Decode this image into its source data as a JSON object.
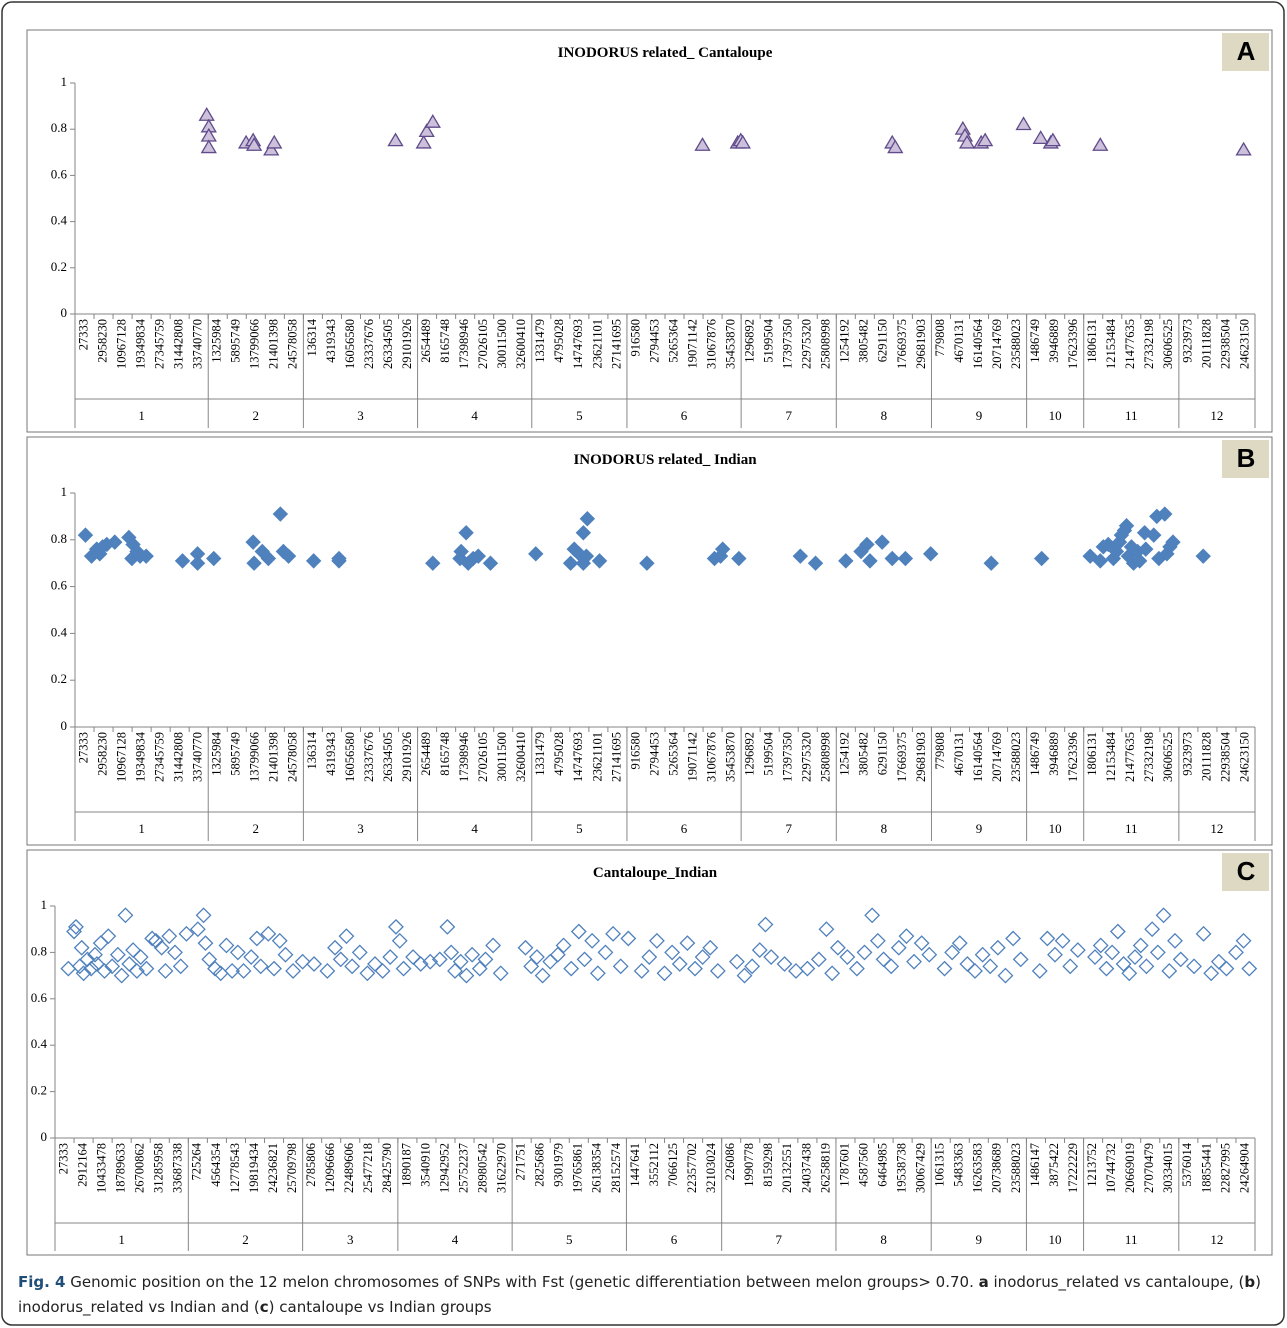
{
  "chart_data": [
    {
      "type": "scatter",
      "title": "INODORUS related_ Cantaloupe",
      "panel": "A",
      "marker": "triangle",
      "color": "#ccc0da",
      "stroke": "#5f4b8b",
      "ylim": [
        0,
        1
      ],
      "yticks": [
        0,
        0.2,
        0.4,
        0.6,
        0.8,
        1
      ],
      "grid": false,
      "groups": [
        {
          "label": "1",
          "positions": [
            "27333",
            "2958230",
            "10967128",
            "19349834",
            "27345759",
            "31442808",
            "33740770"
          ]
        },
        {
          "label": "2",
          "positions": [
            "1325984",
            "5895749",
            "13799066",
            "21401398",
            "24578058"
          ]
        },
        {
          "label": "3",
          "positions": [
            "136314",
            "4319343",
            "16056580",
            "23337676",
            "26334505",
            "29101926"
          ]
        },
        {
          "label": "4",
          "positions": [
            "2654489",
            "8165748",
            "17398946",
            "27026105",
            "30011500",
            "32600410"
          ]
        },
        {
          "label": "5",
          "positions": [
            "1331479",
            "4795028",
            "14747693",
            "23621101",
            "27141695"
          ]
        },
        {
          "label": "6",
          "positions": [
            "916580",
            "2794453",
            "5265364",
            "19071142",
            "31067876",
            "35453870"
          ]
        },
        {
          "label": "7",
          "positions": [
            "1296892",
            "5199504",
            "17397350",
            "22975320",
            "25808998"
          ]
        },
        {
          "label": "8",
          "positions": [
            "1254192",
            "3805482",
            "6291150",
            "17669375",
            "29681903"
          ]
        },
        {
          "label": "9",
          "positions": [
            "779808",
            "4670131",
            "16140564",
            "20714769",
            "23588023"
          ]
        },
        {
          "label": "10",
          "positions": [
            "1486749",
            "3946889",
            "17623396"
          ]
        },
        {
          "label": "11",
          "positions": [
            "1806131",
            "12153484",
            "21477635",
            "27332198",
            "30606525"
          ]
        },
        {
          "label": "12",
          "positions": [
            "9323973",
            "20111828",
            "22938504",
            "24623150"
          ]
        }
      ],
      "points": {
        "x": [
          6.42,
          6.53,
          6.53,
          6.53,
          8.49,
          8.86,
          8.91,
          9.81,
          9.97,
          16.34,
          17.82,
          17.98,
          18.3,
          32.47,
          34.32,
          34.48,
          34.59,
          42.44,
          42.6,
          46.15,
          46.26,
          46.37,
          47.11,
          47.32,
          49.34,
          50.24,
          50.77,
          50.88,
          53.37,
          60.9
        ],
        "y": [
          0.86,
          0.81,
          0.77,
          0.72,
          0.74,
          0.75,
          0.73,
          0.71,
          0.74,
          0.75,
          0.74,
          0.79,
          0.83,
          0.73,
          0.74,
          0.75,
          0.74,
          0.74,
          0.72,
          0.8,
          0.77,
          0.74,
          0.74,
          0.75,
          0.82,
          0.76,
          0.74,
          0.75,
          0.73,
          0.71
        ]
      }
    },
    {
      "type": "scatter",
      "title": "INODORUS related_ Indian",
      "panel": "B",
      "marker": "diamond",
      "color": "#4f81bd",
      "stroke": "#4f81bd",
      "ylim": [
        0,
        1
      ],
      "yticks": [
        0,
        0.2,
        0.4,
        0.6,
        0.8,
        1
      ],
      "grid": false,
      "groups": [
        {
          "label": "1",
          "positions": [
            "27333",
            "2958230",
            "10967128",
            "19349834",
            "27345759",
            "31442808",
            "33740770"
          ]
        },
        {
          "label": "2",
          "positions": [
            "1325984",
            "5895749",
            "13799066",
            "21401398",
            "24578058"
          ]
        },
        {
          "label": "3",
          "positions": [
            "136314",
            "4319343",
            "16056580",
            "23337676",
            "26334505",
            "29101926"
          ]
        },
        {
          "label": "4",
          "positions": [
            "2654489",
            "8165748",
            "17398946",
            "27026105",
            "30011500",
            "32600410"
          ]
        },
        {
          "label": "5",
          "positions": [
            "1331479",
            "4795028",
            "14747693",
            "23621101",
            "27141695"
          ]
        },
        {
          "label": "6",
          "positions": [
            "916580",
            "2794453",
            "5265364",
            "19071142",
            "31067876",
            "35453870"
          ]
        },
        {
          "label": "7",
          "positions": [
            "1296892",
            "5199504",
            "17397350",
            "22975320",
            "25808998"
          ]
        },
        {
          "label": "8",
          "positions": [
            "1254192",
            "3805482",
            "6291150",
            "17669375",
            "29681903"
          ]
        },
        {
          "label": "9",
          "positions": [
            "779808",
            "4670131",
            "16140564",
            "20714769",
            "23588023"
          ]
        },
        {
          "label": "10",
          "positions": [
            "1486749",
            "3946889",
            "17623396"
          ]
        },
        {
          "label": "11",
          "positions": [
            "1806131",
            "12153484",
            "21477635",
            "27332198",
            "30606525"
          ]
        },
        {
          "label": "12",
          "positions": [
            "9323973",
            "20111828",
            "22938504",
            "24623150"
          ]
        }
      ],
      "points": {
        "x": [
          0.05,
          0.37,
          0.64,
          0.8,
          0.95,
          1.17,
          1.59,
          2.33,
          2.55,
          2.49,
          2.76,
          2.92,
          3.24,
          5.15,
          5.94,
          5.94,
          6.79,
          8.86,
          8.91,
          9.34,
          9.66,
          10.29,
          10.45,
          10.72,
          12.04,
          13.37,
          13.37,
          18.3,
          19.73,
          19.79,
          20.05,
          20.16,
          20.42,
          20.69,
          21.33,
          23.71,
          25.54,
          25.73,
          25.99,
          26.21,
          26.21,
          26.42,
          26.37,
          27.06,
          29.55,
          33.1,
          33.42,
          33.53,
          34.38,
          37.61,
          38.41,
          40,
          40.8,
          41.11,
          41.27,
          41.91,
          42.44,
          43.13,
          44.46,
          47.64,
          50.29,
          52.84,
          53.37,
          53.53,
          53.79,
          54.06,
          54.22,
          54.38,
          54.48,
          54.64,
          54.75,
          54.85,
          55.01,
          55.12,
          55.33,
          55.44,
          55.7,
          55.76,
          56.18,
          56.34,
          56.45,
          56.76,
          56.87,
          57.03,
          57.19,
          58.78
        ],
        "y": [
          0.82,
          0.73,
          0.76,
          0.74,
          0.77,
          0.78,
          0.79,
          0.81,
          0.78,
          0.72,
          0.75,
          0.73,
          0.73,
          0.71,
          0.7,
          0.74,
          0.72,
          0.79,
          0.7,
          0.75,
          0.72,
          0.91,
          0.75,
          0.73,
          0.71,
          0.71,
          0.72,
          0.7,
          0.72,
          0.75,
          0.83,
          0.7,
          0.72,
          0.73,
          0.7,
          0.74,
          0.7,
          0.76,
          0.74,
          0.7,
          0.83,
          0.89,
          0.73,
          0.71,
          0.7,
          0.72,
          0.73,
          0.76,
          0.72,
          0.73,
          0.7,
          0.71,
          0.75,
          0.78,
          0.71,
          0.79,
          0.72,
          0.72,
          0.74,
          0.7,
          0.72,
          0.73,
          0.71,
          0.77,
          0.78,
          0.72,
          0.75,
          0.79,
          0.82,
          0.84,
          0.86,
          0.73,
          0.77,
          0.7,
          0.75,
          0.71,
          0.83,
          0.76,
          0.82,
          0.9,
          0.72,
          0.91,
          0.74,
          0.77,
          0.79,
          0.73
        ]
      }
    },
    {
      "type": "scatter",
      "title": "Cantaloupe_Indian",
      "panel": "C",
      "marker": "diamond-open",
      "color": "none",
      "stroke": "#4f81bd",
      "ylim": [
        0,
        1
      ],
      "yticks": [
        0,
        0.2,
        0.4,
        0.6,
        0.8,
        1
      ],
      "grid": false,
      "groups": [
        {
          "label": "1",
          "positions": [
            "27333",
            "2912164",
            "10433478",
            "18789633",
            "26700862",
            "31285958",
            "33687338"
          ]
        },
        {
          "label": "2",
          "positions": [
            "725264",
            "4564354",
            "12778543",
            "19819434",
            "24236821",
            "25709798"
          ]
        },
        {
          "label": "3",
          "positions": [
            "2785806",
            "12096666",
            "22489606",
            "25477218",
            "28425790"
          ]
        },
        {
          "label": "4",
          "positions": [
            "1890187",
            "3540910",
            "12942952",
            "25752237",
            "28980542",
            "31622970"
          ]
        },
        {
          "label": "5",
          "positions": [
            "271751",
            "2825686",
            "9301979",
            "19765861",
            "26138354",
            "28152574"
          ]
        },
        {
          "label": "6",
          "positions": [
            "1447641",
            "3552112",
            "7066125",
            "22357702",
            "32103024"
          ]
        },
        {
          "label": "7",
          "positions": [
            "226086",
            "1990778",
            "8159298",
            "20132551",
            "24037438",
            "26258819"
          ]
        },
        {
          "label": "8",
          "positions": [
            "1787601",
            "4587560",
            "6464985",
            "19538738",
            "30067429"
          ]
        },
        {
          "label": "9",
          "positions": [
            "1061315",
            "5483363",
            "16263583",
            "20738689",
            "23588023"
          ]
        },
        {
          "label": "10",
          "positions": [
            "1486147",
            "3875422",
            "17222229"
          ]
        },
        {
          "label": "11",
          "positions": [
            "1213752",
            "10744732",
            "20669019",
            "27070479",
            "30334015"
          ]
        },
        {
          "label": "12",
          "positions": [
            "5376014",
            "18855441",
            "22827995",
            "24264904"
          ]
        }
      ],
      "points": {
        "x": [
          0.2,
          0.5,
          0.6,
          0.8,
          0.9,
          1.0,
          1.2,
          1.4,
          1.6,
          1.7,
          1.9,
          2.1,
          2.3,
          2.5,
          2.8,
          3.0,
          3.2,
          3.4,
          3.6,
          3.8,
          4.0,
          4.3,
          4.6,
          4.8,
          5.1,
          5.3,
          5.5,
          5.8,
          6.1,
          6.4,
          7.0,
          7.3,
          7.4,
          7.6,
          7.9,
          8.2,
          8.5,
          8.8,
          9.1,
          9.4,
          9.8,
          10.1,
          10.3,
          10.7,
          11.0,
          11.3,
          11.6,
          12.0,
          12.5,
          13.1,
          13.8,
          14.2,
          14.5,
          14.8,
          15.1,
          15.5,
          15.9,
          16.3,
          16.7,
          17.1,
          17.4,
          17.6,
          17.8,
          18.3,
          18.7,
          19.2,
          19.7,
          20.1,
          20.3,
          20.5,
          20.8,
          21.1,
          21.4,
          21.8,
          22.1,
          22.5,
          22.9,
          24.2,
          24.5,
          24.8,
          25.1,
          25.5,
          25.9,
          26.2,
          26.6,
          27.0,
          27.3,
          27.7,
          28.0,
          28.4,
          28.8,
          29.2,
          29.6,
          30.3,
          30.7,
          31.1,
          31.5,
          31.9,
          32.3,
          32.7,
          33.1,
          33.5,
          33.9,
          34.3,
          35.3,
          35.7,
          36.1,
          36.5,
          36.8,
          37.1,
          37.8,
          38.4,
          39.0,
          39.6,
          40.0,
          40.3,
          40.6,
          41.1,
          41.6,
          42.0,
          42.4,
          42.7,
          43.0,
          43.4,
          43.8,
          44.2,
          44.6,
          45.0,
          45.4,
          46.2,
          46.6,
          47.0,
          47.4,
          47.8,
          48.2,
          48.6,
          49.0,
          49.4,
          49.8,
          50.2,
          51.2,
          51.6,
          52.0,
          52.4,
          52.8,
          53.2,
          54.1,
          54.4,
          54.7,
          55.0,
          55.3,
          55.6,
          55.9,
          56.2,
          56.5,
          56.8,
          57.1,
          57.4,
          57.7,
          58.0,
          58.3,
          58.6,
          59.3,
          59.8,
          60.2,
          60.6,
          61.0,
          61.5,
          61.9,
          62.2
        ],
        "y": [
          0.73,
          0.89,
          0.91,
          0.74,
          0.82,
          0.71,
          0.77,
          0.73,
          0.79,
          0.75,
          0.84,
          0.72,
          0.87,
          0.74,
          0.79,
          0.7,
          0.96,
          0.75,
          0.81,
          0.72,
          0.78,
          0.73,
          0.86,
          0.85,
          0.82,
          0.72,
          0.87,
          0.8,
          0.74,
          0.88,
          0.9,
          0.96,
          0.84,
          0.77,
          0.73,
          0.71,
          0.83,
          0.72,
          0.8,
          0.72,
          0.78,
          0.86,
          0.74,
          0.88,
          0.73,
          0.85,
          0.79,
          0.72,
          0.76,
          0.75,
          0.72,
          0.82,
          0.77,
          0.87,
          0.74,
          0.8,
          0.71,
          0.75,
          0.72,
          0.78,
          0.91,
          0.85,
          0.73,
          0.78,
          0.75,
          0.76,
          0.77,
          0.91,
          0.8,
          0.72,
          0.76,
          0.7,
          0.79,
          0.73,
          0.77,
          0.83,
          0.71,
          0.82,
          0.74,
          0.78,
          0.7,
          0.76,
          0.79,
          0.83,
          0.73,
          0.89,
          0.77,
          0.85,
          0.71,
          0.8,
          0.88,
          0.74,
          0.86,
          0.72,
          0.78,
          0.85,
          0.71,
          0.8,
          0.75,
          0.84,
          0.73,
          0.78,
          0.82,
          0.72,
          0.76,
          0.7,
          0.74,
          0.81,
          0.92,
          0.78,
          0.75,
          0.72,
          0.73,
          0.77,
          0.9,
          0.71,
          0.82,
          0.78,
          0.73,
          0.8,
          0.96,
          0.85,
          0.77,
          0.74,
          0.82,
          0.87,
          0.76,
          0.84,
          0.79,
          0.73,
          0.8,
          0.84,
          0.75,
          0.72,
          0.79,
          0.74,
          0.82,
          0.7,
          0.86,
          0.77,
          0.72,
          0.86,
          0.79,
          0.85,
          0.74,
          0.81,
          0.78,
          0.83,
          0.73,
          0.8,
          0.89,
          0.75,
          0.71,
          0.78,
          0.83,
          0.74,
          0.9,
          0.8,
          0.96,
          0.72,
          0.85,
          0.77,
          0.74,
          0.88,
          0.71,
          0.76,
          0.73,
          0.8,
          0.85,
          0.73
        ]
      }
    }
  ],
  "caption": [
    {
      "text": "Fig. 4",
      "bold": true
    },
    {
      "text": " Genomic position on the 12 melon chromosomes of SNPs with Fst (genetic differentiation between melon groups> 0.70. ",
      "bold": false
    },
    {
      "text": "a",
      "bold": true
    },
    {
      "text": " inodorus_related vs cantaloupe, (",
      "bold": false
    },
    {
      "text": "b",
      "bold": true
    },
    {
      "text": ") inodorus_related vs Indian and (",
      "bold": false
    },
    {
      "text": "c",
      "bold": true
    },
    {
      "text": ") cantaloupe vs Indian groups",
      "bold": false
    }
  ]
}
